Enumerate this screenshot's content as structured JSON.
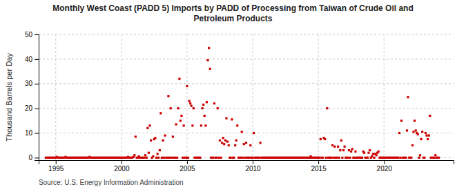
{
  "chart_data": {
    "type": "scatter",
    "title": "Monthly West Coast (PADD 5) Imports by PADD of Processing from Taiwan of Crude Oil and\nPetroleum Products",
    "ylabel": "Thousand Barrels per Day",
    "source": "Source: U.S. Energy Information Administration",
    "color": "#cc0000",
    "marker": "square",
    "grid": true,
    "xlim": [
      1993.7,
      2025.3
    ],
    "ylim": [
      -1,
      50
    ],
    "xticks": [
      1995,
      2000,
      2005,
      2010,
      2015,
      2020
    ],
    "yticks": [
      0,
      10,
      20,
      30,
      40,
      50
    ],
    "x": [
      1994.25,
      1994.33,
      1994.42,
      1994.5,
      1994.58,
      1994.67,
      1994.75,
      1994.83,
      1994.92,
      1995.0,
      1995.08,
      1995.17,
      1995.25,
      1995.33,
      1995.42,
      1995.5,
      1995.58,
      1995.67,
      1995.75,
      1995.83,
      1995.92,
      1996.0,
      1996.08,
      1996.17,
      1996.25,
      1996.33,
      1996.42,
      1996.5,
      1996.58,
      1996.67,
      1996.75,
      1996.83,
      1996.92,
      1997.0,
      1997.08,
      1997.17,
      1997.25,
      1997.33,
      1997.42,
      1997.5,
      1997.58,
      1997.67,
      1997.75,
      1997.83,
      1997.92,
      1998.0,
      1998.08,
      1998.17,
      1998.25,
      1998.33,
      1998.42,
      1998.5,
      1998.58,
      1998.67,
      1998.75,
      1998.83,
      1998.92,
      1999.0,
      1999.08,
      1999.17,
      1999.25,
      1999.33,
      1999.42,
      1999.5,
      1999.58,
      1999.67,
      1999.75,
      1999.83,
      1999.92,
      2000.0,
      2000.08,
      2000.17,
      2000.25,
      2000.33,
      2000.42,
      2000.5,
      2000.58,
      2000.67,
      2000.75,
      2000.83,
      2000.92,
      2001.0,
      2001.08,
      2001.17,
      2001.25,
      2001.33,
      2001.42,
      2001.5,
      2001.58,
      2001.67,
      2001.75,
      2001.83,
      2001.92,
      2002.0,
      2002.08,
      2002.17,
      2002.25,
      2002.33,
      2002.42,
      2002.5,
      2002.58,
      2002.67,
      2002.75,
      2002.83,
      2002.92,
      2003.0,
      2003.08,
      2003.17,
      2003.25,
      2003.33,
      2003.42,
      2003.5,
      2003.58,
      2003.67,
      2003.75,
      2003.83,
      2003.92,
      2004.0,
      2004.08,
      2004.17,
      2004.25,
      2004.33,
      2004.42,
      2004.5,
      2004.58,
      2004.67,
      2004.75,
      2004.83,
      2004.92,
      2005.0,
      2005.08,
      2005.17,
      2005.25,
      2005.33,
      2005.42,
      2005.5,
      2005.58,
      2005.67,
      2005.75,
      2005.83,
      2005.92,
      2006.0,
      2006.08,
      2006.17,
      2006.25,
      2006.33,
      2006.42,
      2006.5,
      2006.58,
      2006.67,
      2006.75,
      2006.83,
      2006.92,
      2007.0,
      2007.08,
      2007.17,
      2007.25,
      2007.33,
      2007.42,
      2007.5,
      2007.58,
      2007.67,
      2007.75,
      2007.83,
      2007.92,
      2008.0,
      2008.08,
      2008.17,
      2008.25,
      2008.33,
      2008.42,
      2008.5,
      2008.58,
      2008.67,
      2008.75,
      2008.83,
      2008.92,
      2009.0,
      2009.08,
      2009.17,
      2009.25,
      2009.33,
      2009.42,
      2009.5,
      2009.58,
      2009.67,
      2009.75,
      2009.83,
      2009.92,
      2010.0,
      2010.08,
      2010.17,
      2010.25,
      2010.33,
      2010.42,
      2010.5,
      2010.58,
      2010.67,
      2010.75,
      2010.83,
      2010.92,
      2011.0,
      2011.08,
      2011.17,
      2011.25,
      2011.33,
      2011.42,
      2011.5,
      2011.58,
      2011.67,
      2011.75,
      2011.83,
      2011.92,
      2012.0,
      2012.08,
      2012.17,
      2012.25,
      2012.33,
      2012.42,
      2012.5,
      2012.58,
      2012.67,
      2012.75,
      2012.83,
      2012.92,
      2013.0,
      2013.08,
      2013.17,
      2013.25,
      2013.33,
      2013.42,
      2013.5,
      2013.58,
      2013.67,
      2013.75,
      2013.83,
      2013.92,
      2014.0,
      2014.08,
      2014.17,
      2014.25,
      2014.33,
      2014.42,
      2014.5,
      2014.58,
      2014.67,
      2014.75,
      2014.83,
      2014.92,
      2015.0,
      2015.08,
      2015.17,
      2015.25,
      2015.33,
      2015.42,
      2015.5,
      2015.58,
      2015.67,
      2015.75,
      2015.83,
      2015.92,
      2016.0,
      2016.08,
      2016.17,
      2016.25,
      2016.33,
      2016.42,
      2016.5,
      2016.58,
      2016.67,
      2016.75,
      2016.83,
      2016.92,
      2017.0,
      2017.08,
      2017.17,
      2017.25,
      2017.33,
      2017.42,
      2017.5,
      2017.58,
      2017.67,
      2017.75,
      2017.83,
      2017.92,
      2018.0,
      2018.08,
      2018.17,
      2018.25,
      2018.33,
      2018.42,
      2018.5,
      2018.58,
      2018.67,
      2018.75,
      2018.83,
      2018.92,
      2019.0,
      2019.08,
      2019.17,
      2019.25,
      2019.33,
      2019.42,
      2019.5,
      2019.58,
      2019.67,
      2019.75,
      2019.83,
      2019.92,
      2020.0,
      2020.08,
      2020.17,
      2020.25,
      2020.33,
      2020.42,
      2020.5,
      2020.58,
      2020.67,
      2020.75,
      2020.83,
      2020.92,
      2021.0,
      2021.08,
      2021.17,
      2021.25,
      2021.33,
      2021.42,
      2021.5,
      2021.58,
      2021.67,
      2021.75,
      2021.83,
      2021.92,
      2022.0,
      2022.08,
      2022.17,
      2022.25,
      2022.33,
      2022.42,
      2022.5,
      2022.58,
      2022.67,
      2022.75,
      2022.83,
      2022.92,
      2023.0,
      2023.08,
      2023.17,
      2023.25,
      2023.33,
      2023.42,
      2023.5,
      2023.58,
      2023.67,
      2023.75,
      2023.83,
      2023.92,
      2024.0,
      2024.08,
      2024.17
    ],
    "values": [
      0,
      0,
      0,
      0,
      0,
      0,
      0,
      0,
      0,
      0,
      0.3,
      0,
      0,
      0,
      0,
      0,
      0,
      0,
      0.3,
      0,
      0,
      0,
      0,
      0,
      0,
      0,
      0,
      0,
      0,
      0,
      0,
      0,
      0,
      0,
      0,
      0,
      0,
      0,
      0,
      0,
      0.3,
      0,
      0,
      0,
      0,
      0,
      0,
      0,
      0,
      0,
      0,
      0,
      0,
      0,
      0,
      0,
      0,
      0,
      0,
      0,
      0,
      0,
      0,
      0,
      0,
      0,
      0,
      0,
      0,
      0,
      0,
      0,
      0,
      0,
      0,
      0.3,
      0,
      0,
      0,
      0,
      0.3,
      1.0,
      8.5,
      0,
      0,
      0.5,
      0,
      0,
      0,
      0,
      0,
      1.0,
      0,
      12.0,
      2.0,
      13.0,
      7.0,
      0,
      0.5,
      7.5,
      8.0,
      0,
      1.5,
      0,
      3.0,
      18.0,
      0,
      7.0,
      0,
      9.0,
      0,
      0,
      25.0,
      0,
      20.0,
      0,
      8.5,
      0,
      0,
      13.5,
      0,
      20.0,
      32.0,
      15.0,
      17.0,
      0,
      13.0,
      0,
      0,
      29.0,
      0,
      23.0,
      22.0,
      21.0,
      13.0,
      20.0,
      0,
      0,
      0,
      0,
      0,
      0,
      13.0,
      20.0,
      21.5,
      17.0,
      13.0,
      22.5,
      39.5,
      44.5,
      36.0,
      0,
      0,
      0,
      22.0,
      0,
      0,
      20.0,
      0,
      7.0,
      0,
      6.0,
      8.0,
      5.5,
      7.0,
      16.0,
      6.5,
      5.0,
      0,
      0,
      15.5,
      0,
      0,
      5.0,
      7.0,
      13.0,
      0,
      0,
      0,
      10.5,
      0,
      5.5,
      0,
      6.0,
      0,
      0,
      0,
      5.0,
      0,
      0,
      10.0,
      0,
      0,
      0,
      0,
      0,
      6.0,
      0,
      0,
      0,
      0,
      0,
      0,
      0,
      0,
      0,
      0,
      0,
      0,
      0,
      0,
      0,
      0,
      0,
      0,
      0,
      0,
      0,
      0,
      0,
      0,
      0,
      0,
      0,
      0,
      0,
      0,
      0,
      0,
      0,
      0,
      0,
      0,
      0,
      0,
      0,
      0,
      0,
      0,
      0,
      0,
      0,
      0.5,
      0,
      0,
      0,
      0,
      0,
      0,
      0,
      0,
      7.5,
      0,
      0,
      8.0,
      7.5,
      0,
      20.0,
      0,
      0,
      0,
      0,
      5.0,
      0,
      4.5,
      0,
      0,
      4.5,
      0,
      3.0,
      7.0,
      0,
      3.0,
      4.5,
      0,
      0,
      0,
      3.0,
      0,
      2.5,
      3.5,
      0,
      0,
      2.5,
      0,
      0,
      0,
      0,
      0,
      0,
      2.5,
      2.0,
      0,
      0,
      0,
      2.0,
      3.0,
      0,
      0.5,
      1.5,
      0,
      1.5,
      1.0,
      2.0,
      2.5,
      0,
      0,
      0,
      0,
      0,
      0,
      0,
      0,
      0,
      0,
      0,
      0,
      0,
      0,
      0,
      0,
      0,
      0,
      10.0,
      0,
      15.0,
      0,
      0,
      0,
      0,
      11.0,
      24.5,
      0,
      0,
      0,
      5.0,
      10.5,
      15.0,
      11.0,
      10.0,
      9.5,
      0,
      1.0,
      7.5,
      10.5,
      0,
      0,
      10.0,
      9.0,
      7.5,
      9.0,
      17.0,
      0,
      0,
      0,
      0,
      1.0,
      0,
      0,
      0
    ]
  }
}
